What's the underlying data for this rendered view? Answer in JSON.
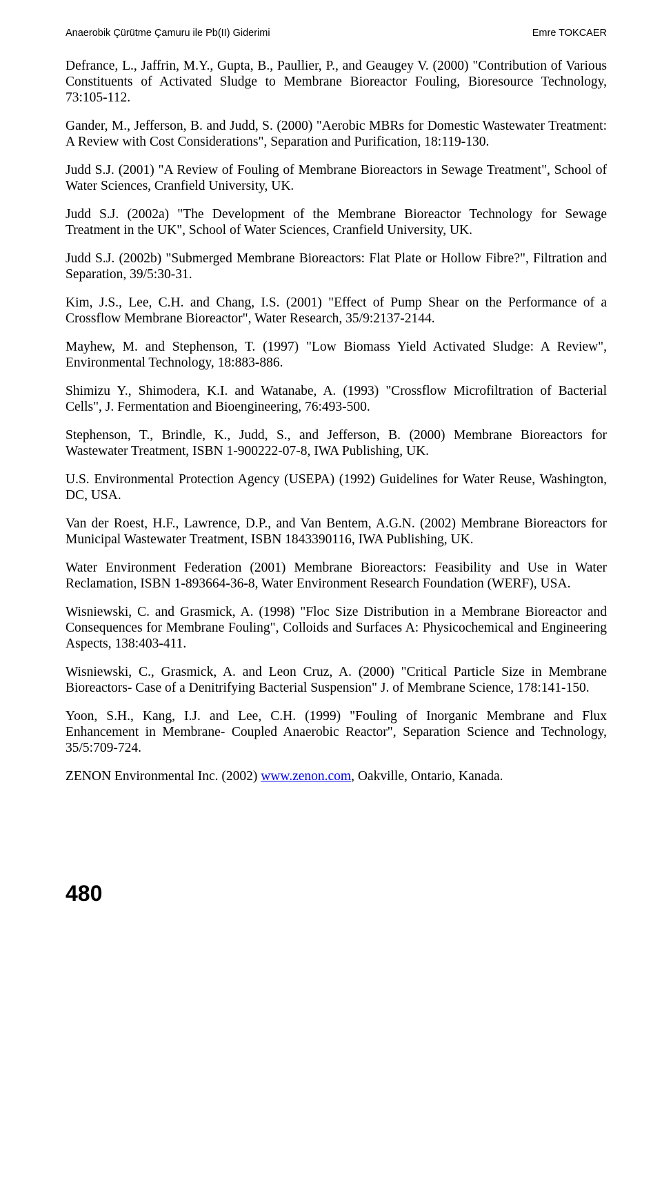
{
  "header": {
    "left": "Anaerobik Çürütme Çamuru ile Pb(II) Giderimi",
    "right": "Emre TOKCAER"
  },
  "refs": [
    "Defrance, L., Jaffrin, M.Y., Gupta, B., Paullier, P., and Geaugey V. (2000) \"Contribution of Various Constituents of Activated Sludge to Membrane Bioreactor Fouling, Bioresource Technology, 73:105-112.",
    "Gander, M., Jefferson, B. and Judd, S. (2000) \"Aerobic MBRs for Domestic Wastewater Treatment: A Review with Cost Considerations\", Separation and Purification, 18:119-130.",
    "Judd S.J. (2001) \"A Review of Fouling of Membrane Bioreactors in Sewage Treatment\", School of Water Sciences, Cranfield University, UK.",
    "Judd S.J. (2002a) \"The Development of the Membrane Bioreactor Technology for Sewage Treatment in the UK\", School of Water Sciences, Cranfield University, UK.",
    "Judd S.J. (2002b) \"Submerged Membrane Bioreactors: Flat Plate or Hollow Fibre?\", Filtration and Separation, 39/5:30-31.",
    "Kim, J.S., Lee, C.H. and Chang, I.S. (2001) \"Effect of Pump Shear on the Performance of a Crossflow Membrane Bioreactor\", Water Research, 35/9:2137-2144.",
    "Mayhew, M. and Stephenson, T. (1997) \"Low Biomass Yield Activated Sludge: A Review\", Environmental Technology, 18:883-886.",
    "Shimizu Y., Shimodera, K.I. and Watanabe, A. (1993) \"Crossflow Microfiltration of Bacterial Cells\", J. Fermentation and Bioengineering, 76:493-500.",
    "Stephenson, T., Brindle, K., Judd, S., and Jefferson, B. (2000) Membrane Bioreactors for Wastewater Treatment, ISBN 1-900222-07-8, IWA Publishing, UK.",
    "U.S. Environmental Protection Agency (USEPA) (1992) Guidelines for Water Reuse, Washington, DC, USA.",
    "Van der Roest, H.F., Lawrence, D.P., and Van Bentem, A.G.N. (2002) Membrane Bioreactors for Municipal Wastewater Treatment, ISBN 1843390116, IWA Publishing, UK.",
    "Water Environment Federation (2001) Membrane Bioreactors: Feasibility and Use in Water Reclamation, ISBN 1-893664-36-8, Water Environment Research Foundation (WERF), USA.",
    "Wisniewski, C. and Grasmick, A. (1998) \"Floc Size Distribution in a Membrane Bioreactor and Consequences for Membrane Fouling\", Colloids and Surfaces A: Physicochemical and Engineering Aspects, 138:403-411.",
    "Wisniewski, C., Grasmick, A. and Leon Cruz, A. (2000) \"Critical Particle Size in Membrane Bioreactors- Case of a Denitrifying Bacterial Suspension\" J. of Membrane Science, 178:141-150.",
    "Yoon, S.H., Kang, I.J. and Lee, C.H. (1999) \"Fouling of Inorganic Membrane and Flux Enhancement in Membrane- Coupled Anaerobic Reactor\", Separation Science and Technology, 35/5:709-724."
  ],
  "zenon": {
    "prefix": "ZENON Environmental Inc. (2002) ",
    "link": "www.zenon.com",
    "suffix": ", Oakville, Ontario, Kanada."
  },
  "pageNumber": "480"
}
